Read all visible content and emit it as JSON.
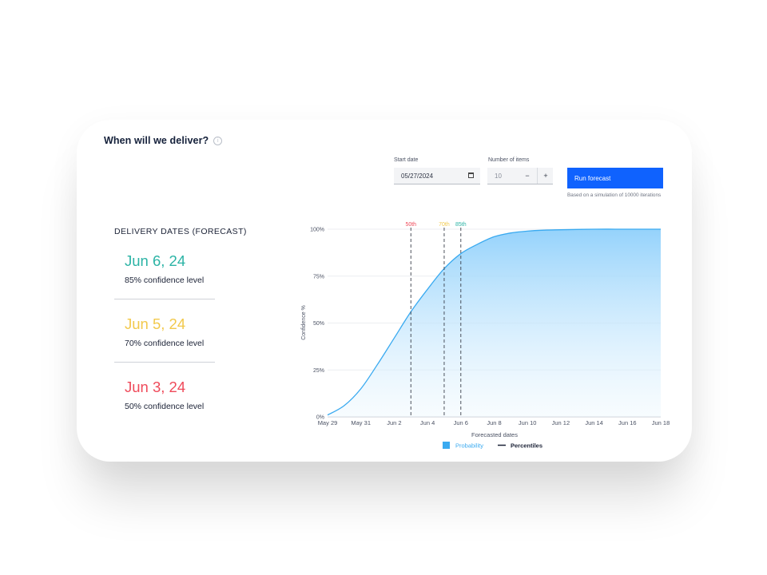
{
  "page": {
    "title": "When will we deliver?",
    "info_icon": "i"
  },
  "controls": {
    "start_date_label": "Start date",
    "start_date_value": "05/27/2024",
    "items_label": "Number of items",
    "items_value": "10",
    "minus": "−",
    "plus": "+",
    "run_label": "Run forecast",
    "note": "Based on a simulation of 10000 iterations"
  },
  "delivery": {
    "heading": "DELIVERY DATES (FORECAST)",
    "items": [
      {
        "date": "Jun 6, 24",
        "confidence": "85% confidence level",
        "color": "#2bb3a5"
      },
      {
        "date": "Jun 5, 24",
        "confidence": "70% confidence level",
        "color": "#f2c94c"
      },
      {
        "date": "Jun 3, 24",
        "confidence": "50% confidence level",
        "color": "#ef4a5a"
      }
    ]
  },
  "chart_data": {
    "type": "area",
    "xlabel": "Forecasted dates",
    "ylabel": "Confidence %",
    "x_ticks": [
      "May 29",
      "May 31",
      "Jun 2",
      "Jun 4",
      "Jun 6",
      "Jun 8",
      "Jun 10",
      "Jun 12",
      "Jun 14",
      "Jun 16",
      "Jun 18"
    ],
    "y_ticks": [
      "0%",
      "25%",
      "50%",
      "75%",
      "100%"
    ],
    "ylim": [
      0,
      100
    ],
    "xlim": [
      "May 29",
      "Jun 18"
    ],
    "series": [
      {
        "name": "Probability",
        "color": "#3aaaf0",
        "x": [
          "May 29",
          "May 30",
          "May 31",
          "Jun 1",
          "Jun 2",
          "Jun 3",
          "Jun 4",
          "Jun 5",
          "Jun 6",
          "Jun 7",
          "Jun 8",
          "Jun 9",
          "Jun 10",
          "Jun 11",
          "Jun 12",
          "Jun 14",
          "Jun 16",
          "Jun 18"
        ],
        "values": [
          1,
          6,
          15,
          28,
          42,
          56,
          68,
          79,
          87,
          92,
          96,
          98,
          99,
          99.5,
          99.7,
          100,
          100,
          100
        ]
      }
    ],
    "percentiles": [
      {
        "label": "50th",
        "date": "Jun 3",
        "color": "#ef4a5a"
      },
      {
        "label": "70th",
        "date": "Jun 5",
        "color": "#f2c94c"
      },
      {
        "label": "85th",
        "date": "Jun 6",
        "color": "#2bb3a5"
      }
    ],
    "legend": [
      {
        "label": "Probability",
        "color": "#3aaaf0"
      },
      {
        "label": "Percentiles",
        "color": "#1b2236"
      }
    ],
    "legend_position": "bottom",
    "grid": true
  }
}
